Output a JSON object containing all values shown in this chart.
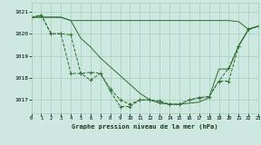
{
  "bg_color": "#cce8e0",
  "grid_color": "#aaccbb",
  "line_color": "#2d6e2d",
  "title": "Graphe pression niveau de la mer (hPa)",
  "xlim": [
    0,
    23
  ],
  "ylim": [
    1016.4,
    1021.4
  ],
  "yticks": [
    1017,
    1018,
    1019,
    1020,
    1021
  ],
  "xticks": [
    0,
    1,
    2,
    3,
    4,
    5,
    6,
    7,
    8,
    9,
    10,
    11,
    12,
    13,
    14,
    15,
    16,
    17,
    18,
    19,
    20,
    21,
    22,
    23
  ],
  "series_flat_x": [
    0,
    1,
    2,
    3,
    4,
    5,
    6,
    7,
    8,
    9,
    10,
    11,
    12,
    13,
    14,
    15,
    16,
    17,
    18,
    19,
    20,
    21,
    22,
    23
  ],
  "series_flat_y": [
    1020.75,
    1020.75,
    1020.75,
    1020.75,
    1020.6,
    1020.6,
    1020.6,
    1020.6,
    1020.6,
    1020.6,
    1020.6,
    1020.6,
    1020.6,
    1020.6,
    1020.6,
    1020.6,
    1020.6,
    1020.6,
    1020.6,
    1020.6,
    1020.6,
    1020.55,
    1020.2,
    1020.35
  ],
  "series_diag_x": [
    0,
    1,
    2,
    3,
    4,
    5,
    6,
    7,
    8,
    9,
    10,
    11,
    12,
    13,
    14,
    15,
    16,
    17,
    18,
    19,
    20,
    21,
    22,
    23
  ],
  "series_diag_y": [
    1020.75,
    1020.75,
    1020.75,
    1020.75,
    1020.6,
    1019.8,
    1019.4,
    1018.9,
    1018.5,
    1018.1,
    1017.7,
    1017.3,
    1017.0,
    1016.85,
    1016.8,
    1016.8,
    1016.85,
    1016.9,
    1017.1,
    1018.4,
    1018.4,
    1019.45,
    1020.2,
    1020.35
  ],
  "series_mid_x": [
    0,
    1,
    2,
    3,
    4,
    5,
    6,
    7,
    8,
    9,
    10,
    11,
    12,
    13,
    14,
    15,
    16,
    17,
    18,
    19,
    20,
    21,
    22,
    23
  ],
  "series_mid_y": [
    1020.75,
    1020.85,
    1020.0,
    1020.0,
    1018.2,
    1018.2,
    1018.25,
    1018.2,
    1017.5,
    1017.0,
    1016.8,
    1017.0,
    1017.0,
    1016.9,
    1016.8,
    1016.8,
    1017.0,
    1017.1,
    1017.15,
    1017.85,
    1017.85,
    1019.45,
    1020.2,
    1020.35
  ],
  "series_main_x": [
    0,
    1,
    2,
    3,
    4,
    5,
    6,
    7,
    8,
    9,
    10,
    11,
    12,
    13,
    14,
    15,
    16,
    17,
    18,
    19,
    20,
    21,
    22,
    23
  ],
  "series_main_y": [
    1020.75,
    1020.85,
    1020.0,
    1020.0,
    1019.95,
    1018.2,
    1017.9,
    1018.2,
    1017.4,
    1016.7,
    1016.7,
    1017.0,
    1017.0,
    1016.95,
    1016.8,
    1016.8,
    1017.0,
    1017.1,
    1017.15,
    1017.85,
    1018.45,
    1019.45,
    1020.2,
    1020.35
  ]
}
